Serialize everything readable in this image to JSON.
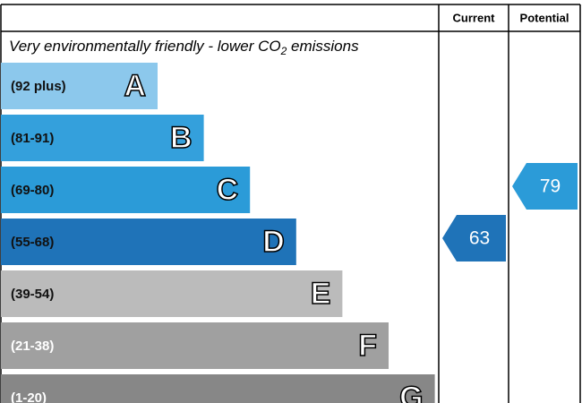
{
  "header": {
    "current": "Current",
    "potential": "Potential"
  },
  "subtitle": {
    "before": "Very environmentally friendly - lower CO",
    "subscript": "2",
    "after": " emissions"
  },
  "bands": [
    {
      "range": "(92 plus)",
      "letter": "A",
      "color": "#8cc8ec",
      "text_color": "#111111"
    },
    {
      "range": "(81-91)",
      "letter": "B",
      "color": "#34a0dc",
      "text_color": "#111111"
    },
    {
      "range": "(69-80)",
      "letter": "C",
      "color": "#2b9bd8",
      "text_color": "#111111"
    },
    {
      "range": "(55-68)",
      "letter": "D",
      "color": "#1f73b8",
      "text_color": "#111111"
    },
    {
      "range": "(39-54)",
      "letter": "E",
      "color": "#bbbbbb",
      "text_color": "#111111"
    },
    {
      "range": "(21-38)",
      "letter": "F",
      "color": "#a0a0a0",
      "text_color": "#ffffff"
    },
    {
      "range": "(1-20)",
      "letter": "G",
      "color": "#878787",
      "text_color": "#ffffff"
    }
  ],
  "current": 63,
  "potential": 79
}
